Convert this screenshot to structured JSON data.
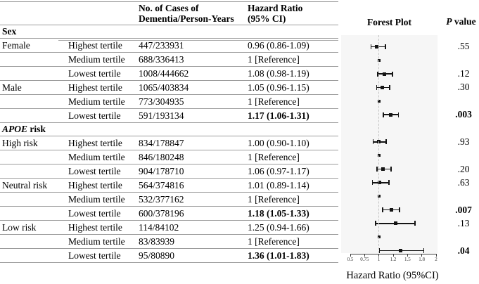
{
  "table": {
    "header": {
      "cases_line1": "No. of Cases of",
      "cases_line2": "Dementia/Person-Years",
      "hr_line1": "Hazard Ratio",
      "hr_line2": "(95% CI)"
    },
    "rows": [
      {
        "type": "section",
        "italic": "",
        "label": "Sex"
      },
      {
        "type": "data",
        "group": "Female",
        "tertile": "Highest tertile",
        "cases": "447/233931",
        "hr": "0.96 (0.86-1.09)",
        "bold": false
      },
      {
        "type": "data",
        "group": "",
        "tertile": "Medium tertile",
        "cases": "688/336413",
        "hr": "1 [Reference]",
        "bold": false
      },
      {
        "type": "data",
        "group": "",
        "tertile": "Lowest tertile",
        "cases": "1008/444662",
        "hr": "1.08 (0.98-1.19)",
        "bold": false
      },
      {
        "type": "data",
        "group": "Male",
        "tertile": "Highest tertile",
        "cases": "1065/403834",
        "hr": "1.05 (0.96-1.15)",
        "bold": false
      },
      {
        "type": "data",
        "group": "",
        "tertile": "Medium tertile",
        "cases": "773/304935",
        "hr": "1 [Reference]",
        "bold": false
      },
      {
        "type": "data",
        "group": "",
        "tertile": "Lowest tertile",
        "cases": "591/193134",
        "hr": "1.17 (1.06-1.31)",
        "bold": true
      },
      {
        "type": "section",
        "italic": "APOE",
        "label": " risk"
      },
      {
        "type": "data",
        "group": "High risk",
        "tertile": "Highest tertile",
        "cases": "834/178847",
        "hr": "1.00 (0.90-1.10)",
        "bold": false
      },
      {
        "type": "data",
        "group": "",
        "tertile": "Medium tertile",
        "cases": "846/180248",
        "hr": "1 [Reference]",
        "bold": false
      },
      {
        "type": "data",
        "group": "",
        "tertile": "Lowest tertile",
        "cases": "904/178710",
        "hr": "1.06 (0.97-1.17)",
        "bold": false
      },
      {
        "type": "data",
        "group": "Neutral risk",
        "tertile": "Highest tertile",
        "cases": "564/374816",
        "hr": "1.01 (0.89-1.14)",
        "bold": false
      },
      {
        "type": "data",
        "group": "",
        "tertile": "Medium tertile",
        "cases": "532/377162",
        "hr": "1 [Reference]",
        "bold": false
      },
      {
        "type": "data",
        "group": "",
        "tertile": "Lowest tertile",
        "cases": "600/378196",
        "hr": "1.18 (1.05-1.33)",
        "bold": true
      },
      {
        "type": "data",
        "group": "Low risk",
        "tertile": "Highest tertile",
        "cases": "114/84102",
        "hr": "1.25 (0.94-1.66)",
        "bold": false
      },
      {
        "type": "data",
        "group": "",
        "tertile": "Medium tertile",
        "cases": "83/83939",
        "hr": "1 [Reference]",
        "bold": false
      },
      {
        "type": "data",
        "group": "",
        "tertile": "Lowest tertile",
        "cases": "95/80890",
        "hr": "1.36 (1.01-1.83)",
        "bold": true
      }
    ]
  },
  "panel": {
    "p_header_italic": "P",
    "p_header_rest": " value"
  },
  "chart_data": {
    "type": "scatter",
    "subtype": "forest-plot-with-error-bars",
    "title": "Forest Plot",
    "xlabel": "Hazard Ratio (95%CI)",
    "x_ticks": [
      0.5,
      0.75,
      1,
      1.2,
      1.5,
      1.8,
      2
    ],
    "x_tick_labels": [
      "0.5",
      "0.75",
      "1",
      "1.2",
      "1.5",
      "1.8",
      "2"
    ],
    "xlim": [
      0.5,
      2
    ],
    "reference_line": 1,
    "grid": false,
    "series": [
      {
        "label": "Female Highest tertile",
        "est": 0.96,
        "lo": 0.86,
        "hi": 1.09,
        "ref": false,
        "p": ".55",
        "p_bold": false
      },
      {
        "label": "Female Medium tertile",
        "est": 1,
        "ref": true,
        "p": "",
        "p_bold": false
      },
      {
        "label": "Female Lowest tertile",
        "est": 1.08,
        "lo": 0.98,
        "hi": 1.19,
        "ref": false,
        "p": ".12",
        "p_bold": false
      },
      {
        "label": "Male Highest tertile",
        "est": 1.05,
        "lo": 0.96,
        "hi": 1.15,
        "ref": false,
        "p": ".30",
        "p_bold": false
      },
      {
        "label": "Male Medium tertile",
        "est": 1,
        "ref": true,
        "p": "",
        "p_bold": false
      },
      {
        "label": "Male Lowest tertile",
        "est": 1.17,
        "lo": 1.06,
        "hi": 1.31,
        "ref": false,
        "p": ".003",
        "p_bold": true
      },
      {
        "label": "High risk Highest tertile",
        "est": 1.0,
        "lo": 0.9,
        "hi": 1.1,
        "ref": false,
        "p": ".93",
        "p_bold": false
      },
      {
        "label": "High risk Medium tertile",
        "est": 1,
        "ref": true,
        "p": "",
        "p_bold": false
      },
      {
        "label": "High risk Lowest tertile",
        "est": 1.06,
        "lo": 0.97,
        "hi": 1.17,
        "ref": false,
        "p": ".20",
        "p_bold": false
      },
      {
        "label": "Neutral risk Highest tertile",
        "est": 1.01,
        "lo": 0.89,
        "hi": 1.14,
        "ref": false,
        "p": ".63",
        "p_bold": false
      },
      {
        "label": "Neutral risk Medium tertile",
        "est": 1,
        "ref": true,
        "p": "",
        "p_bold": false
      },
      {
        "label": "Neutral risk Lowest tertile",
        "est": 1.18,
        "lo": 1.05,
        "hi": 1.33,
        "ref": false,
        "p": ".007",
        "p_bold": true
      },
      {
        "label": "Low risk Highest tertile",
        "est": 1.25,
        "lo": 0.94,
        "hi": 1.66,
        "ref": false,
        "p": ".13",
        "p_bold": false
      },
      {
        "label": "Low risk Medium tertile",
        "est": 1,
        "ref": true,
        "p": "",
        "p_bold": false
      },
      {
        "label": "Low risk Lowest tertile",
        "est": 1.36,
        "lo": 1.01,
        "hi": 1.83,
        "ref": false,
        "p": ".04",
        "p_bold": true
      }
    ],
    "colors": {
      "marker": "#141414",
      "plot_background": "#f6f6f6",
      "reference_dash": "#c6c6c6",
      "rule": "#9c9c9c"
    }
  }
}
